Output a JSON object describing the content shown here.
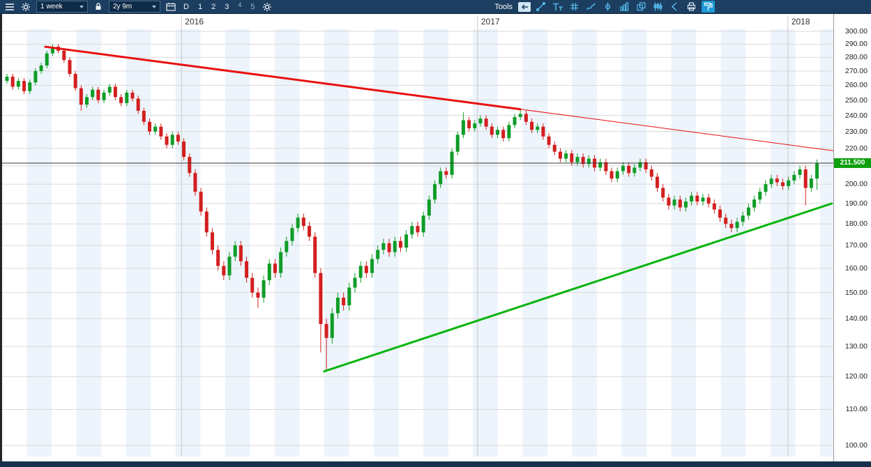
{
  "toolbar": {
    "timeframe_value": "1 week",
    "range_value": "2y 9m",
    "interval_buttons": [
      "D",
      "1",
      "2",
      "3",
      "4",
      "5"
    ],
    "tools_label": "Tools",
    "icons_left": [
      "menu",
      "settings",
      "lock",
      "calendar",
      "chart-settings"
    ],
    "drawing_tools": [
      "back",
      "trendline",
      "text",
      "grid",
      "freehand",
      "pin",
      "histogram",
      "copy",
      "pattern",
      "cursor",
      "printer",
      "paint-roller"
    ],
    "active_drawing_tool": "paint-roller",
    "colors": {
      "bar_bg": "#1c3e60",
      "icon_blue": "#56bdf0"
    }
  },
  "chart_data": {
    "type": "candlestick",
    "title": "",
    "timeframe": "1 week",
    "visible_range": "2y 9m",
    "x_axis": {
      "labels": [
        {
          "label": "2016",
          "week": 30.6
        },
        {
          "label": "2017",
          "week": 82.5
        },
        {
          "label": "2018",
          "week": 136.9
        }
      ]
    },
    "y_axis": {
      "scale": "log",
      "max": 300,
      "min": 100,
      "step": 10,
      "tick_labels": [
        "300.00",
        "290.00",
        "280.00",
        "270.00",
        "260.00",
        "250.00",
        "240.00",
        "230.00",
        "220.00",
        "210.00",
        "200.00",
        "190.00",
        "180.00",
        "170.00",
        "160.00",
        "150.00",
        "140.00",
        "130.00",
        "120.00",
        "110.00",
        "100.00"
      ]
    },
    "current_price": {
      "value": 211.5,
      "label": "211.500"
    },
    "colors": {
      "up": "#0f9d27",
      "down": "#d31f1f",
      "grid": "#dadada",
      "band": "#edf4fb",
      "price_line": "#3a3a3a"
    },
    "first_open": 263,
    "default_wick": 2,
    "closes": [
      266,
      259,
      263,
      256,
      262,
      270,
      274,
      283,
      288,
      285,
      278,
      268,
      258,
      247,
      252,
      257,
      250,
      255,
      259,
      252,
      248,
      255,
      251,
      243,
      236,
      230,
      233,
      227,
      222,
      228,
      224,
      215,
      206,
      196,
      186,
      176,
      168,
      161,
      157,
      165,
      170,
      163,
      156,
      150,
      148,
      155,
      162,
      158,
      167,
      172,
      178,
      183,
      179,
      174,
      158,
      138,
      133,
      142,
      148,
      145,
      152,
      156,
      161,
      158,
      164,
      168,
      171,
      167,
      172,
      169,
      175,
      179,
      176,
      184,
      192,
      200,
      207,
      205,
      218,
      228,
      237,
      232,
      235,
      238,
      233,
      228,
      231,
      226,
      234,
      239,
      241,
      236,
      231,
      233,
      227,
      222,
      218,
      214,
      217,
      212,
      215,
      211,
      214,
      209,
      212,
      207,
      203,
      207,
      210,
      206,
      209,
      212,
      208,
      204,
      198,
      193,
      189,
      192,
      188,
      191,
      194,
      191,
      193,
      190,
      187,
      183,
      180,
      178,
      181,
      184,
      188,
      192,
      196,
      200,
      203,
      201,
      199,
      202,
      205,
      208,
      198,
      203,
      211.5
    ],
    "wick_overrides": {
      "8": {
        "high": 290
      },
      "13": {
        "low": 243
      },
      "44": {
        "low": 144
      },
      "55": {
        "low": 128
      },
      "56": {
        "low": 122
      },
      "80": {
        "high": 242
      },
      "90": {
        "high": 243.5
      },
      "140": {
        "low": 189
      },
      "142": {
        "high": 213.5,
        "low": 197
      }
    },
    "trendlines": [
      {
        "name": "descending-resistance",
        "color": "#e81010",
        "segments": [
          {
            "from_week": 6.7,
            "from_price": 288,
            "to_week": 90.0,
            "to_price": 244,
            "width": 3
          },
          {
            "from_week": 90.0,
            "from_price": 244,
            "to_week": 145.0,
            "to_price": 218.5,
            "width": 1
          }
        ]
      },
      {
        "name": "ascending-support",
        "color": "#06b40c",
        "segments": [
          {
            "from_week": 55.6,
            "from_price": 121.7,
            "to_week": 144.6,
            "to_price": 190,
            "width": 3
          }
        ]
      }
    ]
  }
}
